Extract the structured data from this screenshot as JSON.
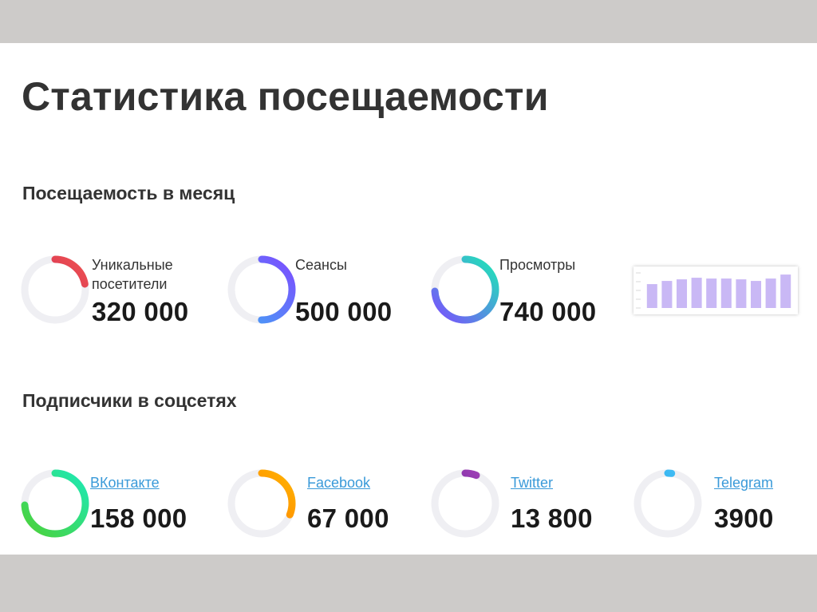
{
  "title": "Статистика посещаемости",
  "monthly": {
    "heading": "Посещаемость в месяц",
    "metrics": [
      {
        "label_line1": "Уникальные",
        "label_line2": "посетители",
        "value": "320 000",
        "progress": 0.22,
        "colors": [
          "#c2185b",
          "#ef5350"
        ]
      },
      {
        "label_line1": "Сеансы",
        "label_line2": "",
        "value": "500 000",
        "progress": 0.5,
        "colors": [
          "#42a5f5",
          "#7c4dff"
        ]
      },
      {
        "label_line1": "Просмотры",
        "label_line2": "",
        "value": "740 000",
        "progress": 0.74,
        "colors": [
          "#7c4dff",
          "#1de9b6"
        ]
      }
    ]
  },
  "social": {
    "heading": "Подписчики в соцсетях",
    "metrics": [
      {
        "label": "ВКонтакте",
        "value": "158 000",
        "progress": 0.74,
        "colors": [
          "#4cd137",
          "#1de9b6"
        ]
      },
      {
        "label": "Facebook",
        "value": "67 000",
        "progress": 0.31,
        "colors": [
          "#ff6d00",
          "#ffb300"
        ]
      },
      {
        "label": "Twitter",
        "value": "13 800",
        "progress": 0.06,
        "colors": [
          "#4a148c",
          "#ab47bc"
        ]
      },
      {
        "label": "Telegram",
        "value": "3900",
        "progress": 0.02,
        "colors": [
          "#039be5",
          "#4fc3f7"
        ]
      }
    ]
  },
  "chart_data": {
    "type": "bar",
    "values": [
      30,
      34,
      36,
      38,
      37,
      37,
      36,
      34,
      37,
      42
    ],
    "color": "#c9b8f5"
  },
  "colors": {
    "text": "#333333",
    "link": "#3a9ad9",
    "ring_track": "#efeff3"
  }
}
